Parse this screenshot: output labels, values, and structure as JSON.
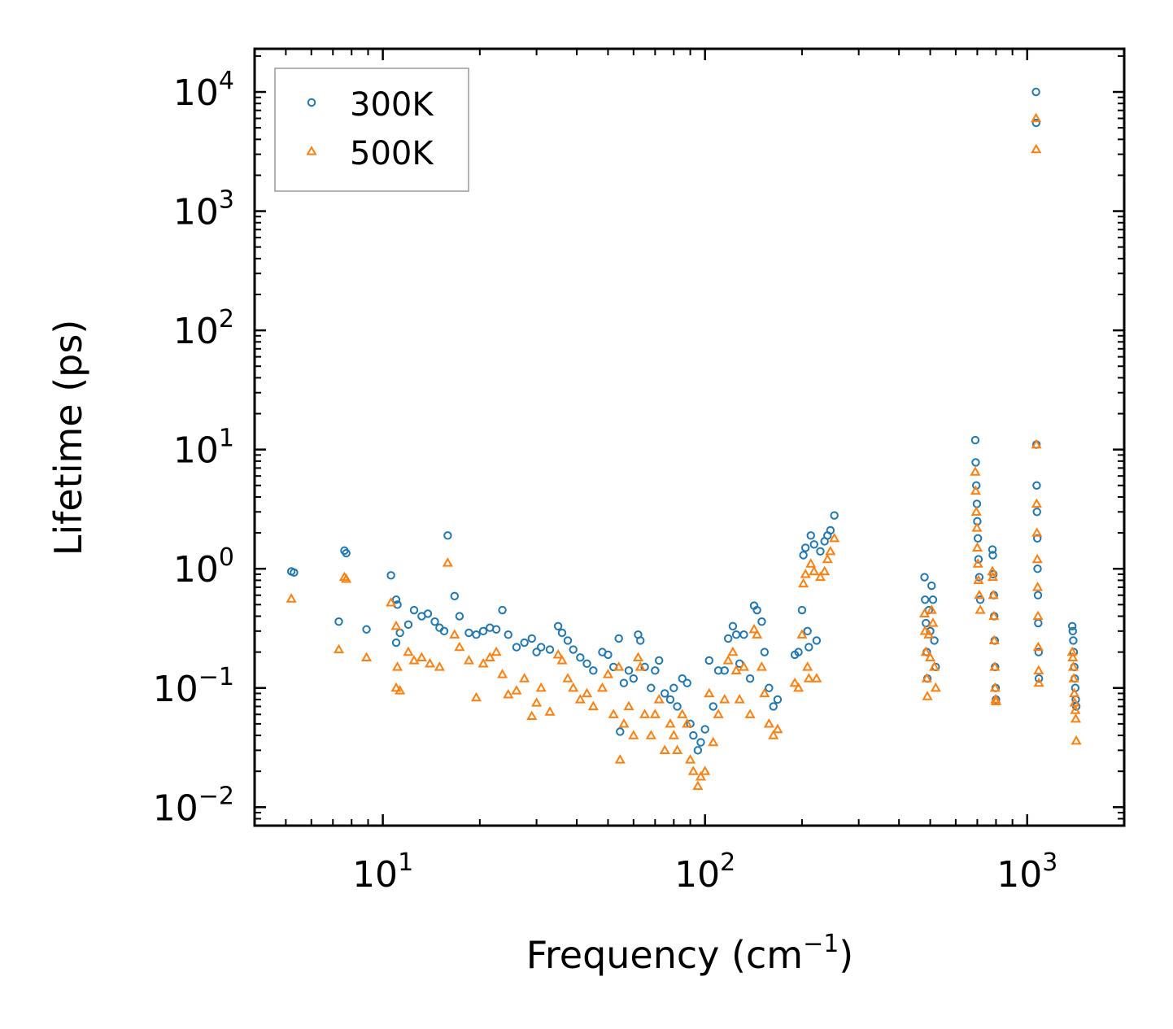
{
  "chart_data": {
    "type": "scatter",
    "title": "",
    "xlabel": "Frequency (cm⁻¹)",
    "ylabel": "Lifetime (ps)",
    "xscale": "log",
    "yscale": "log",
    "xlim": [
      4,
      2000
    ],
    "ylim": [
      0.007,
      23000
    ],
    "x_ticks": [
      {
        "value": 10,
        "base": "10",
        "exp": "1"
      },
      {
        "value": 100,
        "base": "10",
        "exp": "2"
      },
      {
        "value": 1000,
        "base": "10",
        "exp": "3"
      }
    ],
    "y_ticks": [
      {
        "value": 0.01,
        "base": "10",
        "exp": "−2"
      },
      {
        "value": 0.1,
        "base": "10",
        "exp": "−1"
      },
      {
        "value": 1,
        "base": "10",
        "exp": "0"
      },
      {
        "value": 10,
        "base": "10",
        "exp": "1"
      },
      {
        "value": 100,
        "base": "10",
        "exp": "2"
      },
      {
        "value": 1000,
        "base": "10",
        "exp": "3"
      },
      {
        "value": 10000,
        "base": "10",
        "exp": "4"
      }
    ],
    "legend_position": "top-left",
    "series": [
      {
        "name": "300K",
        "color": "#1f77b4",
        "marker": "circle",
        "points": [
          [
            5.2,
            0.95
          ],
          [
            5.3,
            0.93
          ],
          [
            7.3,
            0.36
          ],
          [
            7.6,
            1.42
          ],
          [
            7.7,
            1.35
          ],
          [
            8.9,
            0.31
          ],
          [
            10.6,
            0.88
          ],
          [
            11.0,
            0.55
          ],
          [
            11.1,
            0.5
          ],
          [
            11.0,
            0.24
          ],
          [
            11.3,
            0.29
          ],
          [
            12.0,
            0.34
          ],
          [
            12.5,
            0.45
          ],
          [
            13.2,
            0.4
          ],
          [
            13.8,
            0.42
          ],
          [
            14.5,
            0.36
          ],
          [
            15.0,
            0.32
          ],
          [
            15.5,
            0.3
          ],
          [
            15.9,
            1.9
          ],
          [
            16.7,
            0.59
          ],
          [
            17.3,
            0.4
          ],
          [
            18.5,
            0.29
          ],
          [
            19.5,
            0.28
          ],
          [
            20.5,
            0.3
          ],
          [
            21.5,
            0.32
          ],
          [
            22.5,
            0.31
          ],
          [
            23.5,
            0.45
          ],
          [
            24.5,
            0.28
          ],
          [
            26.0,
            0.22
          ],
          [
            27.5,
            0.24
          ],
          [
            29.0,
            0.26
          ],
          [
            30.0,
            0.2
          ],
          [
            31.0,
            0.22
          ],
          [
            33.0,
            0.21
          ],
          [
            35.0,
            0.33
          ],
          [
            36.0,
            0.29
          ],
          [
            37.5,
            0.25
          ],
          [
            39.0,
            0.21
          ],
          [
            41.0,
            0.18
          ],
          [
            43.0,
            0.16
          ],
          [
            45.0,
            0.14
          ],
          [
            48.0,
            0.2
          ],
          [
            50.0,
            0.19
          ],
          [
            52.0,
            0.15
          ],
          [
            54.0,
            0.26
          ],
          [
            54.5,
            0.043
          ],
          [
            56.0,
            0.11
          ],
          [
            58.0,
            0.14
          ],
          [
            60.0,
            0.12
          ],
          [
            62.0,
            0.28
          ],
          [
            63.0,
            0.25
          ],
          [
            65.0,
            0.15
          ],
          [
            68.0,
            0.1
          ],
          [
            70.0,
            0.14
          ],
          [
            72.0,
            0.17
          ],
          [
            75.0,
            0.09
          ],
          [
            78.0,
            0.08
          ],
          [
            80.0,
            0.1
          ],
          [
            82.0,
            0.07
          ],
          [
            85.0,
            0.12
          ],
          [
            88.0,
            0.11
          ],
          [
            90.0,
            0.05
          ],
          [
            92.0,
            0.04
          ],
          [
            95.0,
            0.03
          ],
          [
            97.0,
            0.035
          ],
          [
            100.0,
            0.045
          ],
          [
            103.0,
            0.17
          ],
          [
            106.0,
            0.07
          ],
          [
            110.0,
            0.14
          ],
          [
            115.0,
            0.14
          ],
          [
            118.0,
            0.26
          ],
          [
            122.0,
            0.33
          ],
          [
            125.0,
            0.28
          ],
          [
            128.0,
            0.16
          ],
          [
            132.0,
            0.28
          ],
          [
            138.0,
            0.12
          ],
          [
            142.0,
            0.49
          ],
          [
            145.0,
            0.45
          ],
          [
            150.0,
            0.36
          ],
          [
            153.0,
            0.2
          ],
          [
            158.0,
            0.1
          ],
          [
            163.0,
            0.07
          ],
          [
            168.0,
            0.08
          ],
          [
            190.0,
            0.19
          ],
          [
            195.0,
            0.2
          ],
          [
            200.0,
            0.45
          ],
          [
            202.0,
            1.3
          ],
          [
            205.0,
            1.5
          ],
          [
            208.0,
            0.3
          ],
          [
            210.0,
            0.22
          ],
          [
            213.0,
            1.9
          ],
          [
            218.0,
            1.6
          ],
          [
            222.0,
            0.25
          ],
          [
            228.0,
            1.4
          ],
          [
            235.0,
            1.7
          ],
          [
            240.0,
            1.9
          ],
          [
            245.0,
            2.1
          ],
          [
            252.0,
            2.8
          ],
          [
            480.0,
            0.85
          ],
          [
            482.0,
            0.55
          ],
          [
            485.0,
            0.35
          ],
          [
            488.0,
            0.2
          ],
          [
            490.0,
            0.12
          ],
          [
            495.0,
            0.45
          ],
          [
            500.0,
            0.3
          ],
          [
            505.0,
            0.72
          ],
          [
            510.0,
            0.55
          ],
          [
            515.0,
            0.25
          ],
          [
            520.0,
            0.15
          ],
          [
            690.0,
            12.0
          ],
          [
            692.0,
            7.8
          ],
          [
            695.0,
            5.0
          ],
          [
            698.0,
            3.5
          ],
          [
            700.0,
            2.5
          ],
          [
            703.0,
            1.8
          ],
          [
            706.0,
            1.2
          ],
          [
            710.0,
            0.85
          ],
          [
            715.0,
            0.55
          ],
          [
            780.0,
            1.45
          ],
          [
            782.0,
            1.3
          ],
          [
            785.0,
            0.9
          ],
          [
            788.0,
            0.6
          ],
          [
            790.0,
            0.4
          ],
          [
            793.0,
            0.25
          ],
          [
            795.0,
            0.15
          ],
          [
            798.0,
            0.1
          ],
          [
            800.0,
            0.08
          ],
          [
            1065.0,
            10000
          ],
          [
            1066.0,
            5500
          ],
          [
            1068.0,
            11.0
          ],
          [
            1070.0,
            5.0
          ],
          [
            1072.0,
            3.0
          ],
          [
            1075.0,
            1.8
          ],
          [
            1077.0,
            1.0
          ],
          [
            1080.0,
            0.6
          ],
          [
            1082.0,
            0.35
          ],
          [
            1085.0,
            0.2
          ],
          [
            1087.0,
            0.12
          ],
          [
            1380.0,
            0.33
          ],
          [
            1385.0,
            0.3
          ],
          [
            1390.0,
            0.25
          ],
          [
            1395.0,
            0.2
          ],
          [
            1400.0,
            0.15
          ],
          [
            1405.0,
            0.12
          ],
          [
            1410.0,
            0.1
          ],
          [
            1415.0,
            0.08
          ],
          [
            1420.0,
            0.07
          ]
        ]
      },
      {
        "name": "500K",
        "color": "#ff7f0e",
        "marker": "triangle",
        "points": [
          [
            5.2,
            0.56
          ],
          [
            7.3,
            0.21
          ],
          [
            7.6,
            0.85
          ],
          [
            7.7,
            0.82
          ],
          [
            8.9,
            0.18
          ],
          [
            10.6,
            0.52
          ],
          [
            11.0,
            0.33
          ],
          [
            11.1,
            0.15
          ],
          [
            11.0,
            0.1
          ],
          [
            11.3,
            0.095
          ],
          [
            12.0,
            0.2
          ],
          [
            12.5,
            0.17
          ],
          [
            13.2,
            0.18
          ],
          [
            14.0,
            0.16
          ],
          [
            15.0,
            0.15
          ],
          [
            15.9,
            1.12
          ],
          [
            16.7,
            0.28
          ],
          [
            17.3,
            0.22
          ],
          [
            18.5,
            0.17
          ],
          [
            19.5,
            0.083
          ],
          [
            20.5,
            0.16
          ],
          [
            21.5,
            0.18
          ],
          [
            22.5,
            0.2
          ],
          [
            23.5,
            0.13
          ],
          [
            24.5,
            0.088
          ],
          [
            26.0,
            0.095
          ],
          [
            27.5,
            0.12
          ],
          [
            29.0,
            0.058
          ],
          [
            30.0,
            0.075
          ],
          [
            31.0,
            0.1
          ],
          [
            33.0,
            0.063
          ],
          [
            35.0,
            0.19
          ],
          [
            36.0,
            0.17
          ],
          [
            37.5,
            0.12
          ],
          [
            39.0,
            0.1
          ],
          [
            41.0,
            0.08
          ],
          [
            43.0,
            0.09
          ],
          [
            45.0,
            0.07
          ],
          [
            48.0,
            0.1
          ],
          [
            50.0,
            0.13
          ],
          [
            52.0,
            0.06
          ],
          [
            54.0,
            0.15
          ],
          [
            54.5,
            0.025
          ],
          [
            56.0,
            0.05
          ],
          [
            58.0,
            0.07
          ],
          [
            60.0,
            0.04
          ],
          [
            62.0,
            0.18
          ],
          [
            63.0,
            0.15
          ],
          [
            65.0,
            0.06
          ],
          [
            68.0,
            0.04
          ],
          [
            70.0,
            0.06
          ],
          [
            72.0,
            0.08
          ],
          [
            75.0,
            0.03
          ],
          [
            78.0,
            0.05
          ],
          [
            80.0,
            0.04
          ],
          [
            82.0,
            0.03
          ],
          [
            85.0,
            0.06
          ],
          [
            88.0,
            0.05
          ],
          [
            90.0,
            0.025
          ],
          [
            92.0,
            0.02
          ],
          [
            95.0,
            0.015
          ],
          [
            97.0,
            0.018
          ],
          [
            100.0,
            0.02
          ],
          [
            103.0,
            0.09
          ],
          [
            106.0,
            0.035
          ],
          [
            110.0,
            0.06
          ],
          [
            115.0,
            0.08
          ],
          [
            118.0,
            0.17
          ],
          [
            122.0,
            0.2
          ],
          [
            125.0,
            0.14
          ],
          [
            128.0,
            0.08
          ],
          [
            132.0,
            0.15
          ],
          [
            138.0,
            0.06
          ],
          [
            142.0,
            0.31
          ],
          [
            145.0,
            0.28
          ],
          [
            150.0,
            0.15
          ],
          [
            153.0,
            0.09
          ],
          [
            158.0,
            0.05
          ],
          [
            163.0,
            0.04
          ],
          [
            168.0,
            0.045
          ],
          [
            190.0,
            0.11
          ],
          [
            195.0,
            0.1
          ],
          [
            200.0,
            0.28
          ],
          [
            202.0,
            0.75
          ],
          [
            205.0,
            0.9
          ],
          [
            208.0,
            0.15
          ],
          [
            210.0,
            0.12
          ],
          [
            213.0,
            1.1
          ],
          [
            218.0,
            0.95
          ],
          [
            222.0,
            0.12
          ],
          [
            228.0,
            0.85
          ],
          [
            235.0,
            0.95
          ],
          [
            240.0,
            1.2
          ],
          [
            245.0,
            1.4
          ],
          [
            252.0,
            1.8
          ],
          [
            480.0,
            0.42
          ],
          [
            482.0,
            0.3
          ],
          [
            485.0,
            0.2
          ],
          [
            488.0,
            0.12
          ],
          [
            490.0,
            0.085
          ],
          [
            495.0,
            0.28
          ],
          [
            500.0,
            0.18
          ],
          [
            505.0,
            0.45
          ],
          [
            510.0,
            0.35
          ],
          [
            515.0,
            0.15
          ],
          [
            520.0,
            0.1
          ],
          [
            690.0,
            6.5
          ],
          [
            692.0,
            4.5
          ],
          [
            695.0,
            3.0
          ],
          [
            698.0,
            2.2
          ],
          [
            700.0,
            1.5
          ],
          [
            703.0,
            1.1
          ],
          [
            706.0,
            0.8
          ],
          [
            710.0,
            0.6
          ],
          [
            715.0,
            0.45
          ],
          [
            780.0,
            0.95
          ],
          [
            782.0,
            0.85
          ],
          [
            785.0,
            0.6
          ],
          [
            788.0,
            0.4
          ],
          [
            790.0,
            0.25
          ],
          [
            793.0,
            0.15
          ],
          [
            795.0,
            0.1
          ],
          [
            798.0,
            0.08
          ],
          [
            800.0,
            0.077
          ],
          [
            1065.0,
            6000
          ],
          [
            1066.0,
            3300
          ],
          [
            1068.0,
            11.0
          ],
          [
            1070.0,
            3.5
          ],
          [
            1072.0,
            2.0
          ],
          [
            1075.0,
            1.2
          ],
          [
            1077.0,
            0.7
          ],
          [
            1080.0,
            0.4
          ],
          [
            1082.0,
            0.22
          ],
          [
            1085.0,
            0.14
          ],
          [
            1087.0,
            0.11
          ],
          [
            1380.0,
            0.2
          ],
          [
            1385.0,
            0.18
          ],
          [
            1390.0,
            0.15
          ],
          [
            1395.0,
            0.12
          ],
          [
            1400.0,
            0.09
          ],
          [
            1405.0,
            0.075
          ],
          [
            1410.0,
            0.065
          ],
          [
            1415.0,
            0.055
          ],
          [
            1420.0,
            0.036
          ]
        ]
      }
    ]
  }
}
